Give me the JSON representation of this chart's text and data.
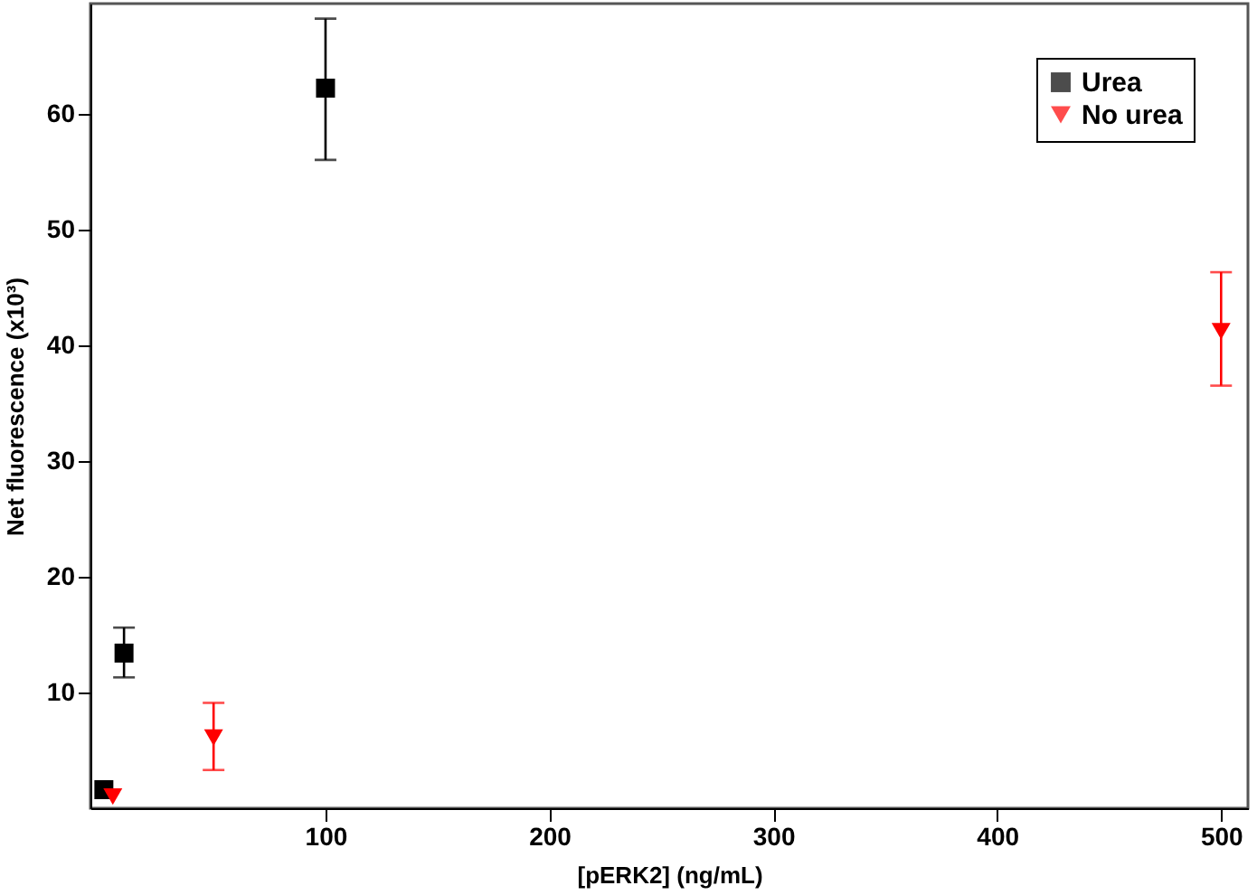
{
  "chart_data": {
    "type": "scatter",
    "xlabel": "[pERK2] (ng/mL)",
    "ylabel": "Net fluorescence (x10³)",
    "xlim": [
      -5,
      512
    ],
    "ylim": [
      0,
      69.5
    ],
    "xticks": [
      100,
      200,
      300,
      400,
      500
    ],
    "yticks": [
      10,
      20,
      30,
      40,
      50,
      60
    ],
    "grid": false,
    "legend": "top right",
    "series": [
      {
        "name": "Urea",
        "color": "#000000",
        "marker": "square",
        "x": [
          1,
          10,
          100
        ],
        "values": [
          1.6,
          13.4,
          62.2
        ],
        "errors": [
          null,
          [
            11.3,
            15.6
          ],
          [
            56.0,
            68.2
          ]
        ]
      },
      {
        "name": "No urea",
        "color": "#ff0000",
        "marker": "triangle",
        "x": [
          5,
          50,
          500
        ],
        "values": [
          1.0,
          6.1,
          41.2
        ],
        "errors": [
          null,
          [
            3.3,
            9.1
          ],
          [
            36.5,
            46.3
          ]
        ]
      }
    ]
  }
}
